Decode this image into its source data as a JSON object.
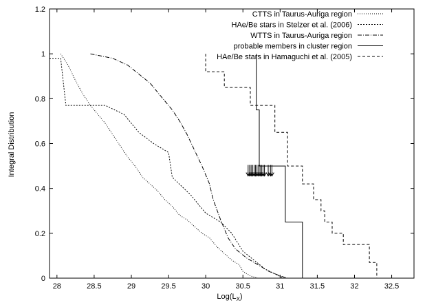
{
  "chart_data": {
    "type": "line",
    "title": "",
    "xlabel": "Log(L_X)",
    "xlabel_main": "Log(L",
    "xlabel_sub": "X",
    "xlabel_close": ")",
    "ylabel": "Integral Distribution",
    "xlim": [
      27.9,
      32.8
    ],
    "ylim": [
      0,
      1.2
    ],
    "xticks": [
      28,
      28.5,
      29,
      29.5,
      30,
      30.5,
      31,
      31.5,
      32,
      32.5
    ],
    "yticks": [
      0,
      0.2,
      0.4,
      0.6,
      0.8,
      1,
      1.2
    ],
    "grid": false,
    "legend_position": "top-right",
    "arrows": {
      "description_y": 0.48,
      "x": [
        30.57,
        30.59,
        30.61,
        30.63,
        30.65,
        30.67,
        30.69,
        30.71,
        30.73,
        30.75,
        30.77,
        30.79,
        30.84,
        30.87,
        30.89
      ]
    },
    "series": [
      {
        "name": "CTTS in Taurus-Auriga region",
        "style": "dotted",
        "x": [
          28.05,
          28.15,
          28.25,
          28.35,
          28.45,
          28.55,
          28.65,
          28.75,
          28.85,
          28.95,
          29.05,
          29.15,
          29.25,
          29.35,
          29.45,
          29.55,
          29.65,
          29.75,
          29.85,
          29.95,
          30.05,
          30.15,
          30.25,
          30.35,
          30.45,
          30.5,
          30.55,
          30.6,
          30.65,
          30.7
        ],
        "y": [
          1.0,
          0.95,
          0.88,
          0.82,
          0.77,
          0.73,
          0.69,
          0.64,
          0.59,
          0.54,
          0.5,
          0.45,
          0.42,
          0.39,
          0.35,
          0.32,
          0.28,
          0.26,
          0.23,
          0.2,
          0.18,
          0.14,
          0.11,
          0.08,
          0.06,
          0.03,
          0.02,
          0.01,
          0.005,
          0.0
        ]
      },
      {
        "name": "HAe/Be stars in Stelzer et al. (2006)",
        "style": "dashdot-fine",
        "x": [
          27.9,
          28.05,
          28.12,
          28.65,
          28.9,
          29.1,
          29.3,
          29.5,
          29.55,
          29.8,
          30.0,
          30.2,
          30.35,
          30.5,
          30.8,
          31.05
        ],
        "y": [
          0.98,
          0.98,
          0.77,
          0.77,
          0.73,
          0.65,
          0.6,
          0.56,
          0.45,
          0.37,
          0.29,
          0.25,
          0.2,
          0.12,
          0.04,
          0.0
        ]
      },
      {
        "name": "WTTS in Taurus-Auriga region",
        "style": "dashdot",
        "x": [
          28.45,
          28.75,
          28.95,
          29.1,
          29.25,
          29.4,
          29.55,
          29.65,
          29.75,
          29.85,
          29.95,
          30.05,
          30.1,
          30.2,
          30.3,
          30.4,
          30.55,
          30.7,
          30.85,
          31.0,
          31.1
        ],
        "y": [
          1.0,
          0.98,
          0.95,
          0.91,
          0.87,
          0.81,
          0.75,
          0.7,
          0.64,
          0.57,
          0.5,
          0.42,
          0.35,
          0.26,
          0.18,
          0.13,
          0.09,
          0.06,
          0.03,
          0.01,
          0.0
        ]
      },
      {
        "name": "probable members in cluster region",
        "style": "solid",
        "x": [
          30.68,
          30.68,
          30.72,
          30.72,
          30.75,
          30.75,
          31.07,
          31.07,
          31.3,
          31.3
        ],
        "y": [
          1.0,
          0.75,
          0.75,
          0.5,
          0.5,
          0.5,
          0.5,
          0.25,
          0.25,
          0.0
        ]
      },
      {
        "name": "HAe/Be stars in Hamaguchi et al. (2005)",
        "style": "dashed",
        "x": [
          30.0,
          30.0,
          30.25,
          30.25,
          30.6,
          30.6,
          30.93,
          30.93,
          31.1,
          31.1,
          31.3,
          31.3,
          31.45,
          31.45,
          31.55,
          31.55,
          31.6,
          31.6,
          31.7,
          31.7,
          31.85,
          31.85,
          32.2,
          32.2,
          32.3,
          32.3
        ],
        "y": [
          1.0,
          0.92,
          0.92,
          0.85,
          0.85,
          0.77,
          0.77,
          0.65,
          0.65,
          0.5,
          0.5,
          0.42,
          0.42,
          0.35,
          0.35,
          0.3,
          0.3,
          0.25,
          0.25,
          0.2,
          0.2,
          0.15,
          0.15,
          0.07,
          0.07,
          0.0
        ]
      }
    ]
  }
}
